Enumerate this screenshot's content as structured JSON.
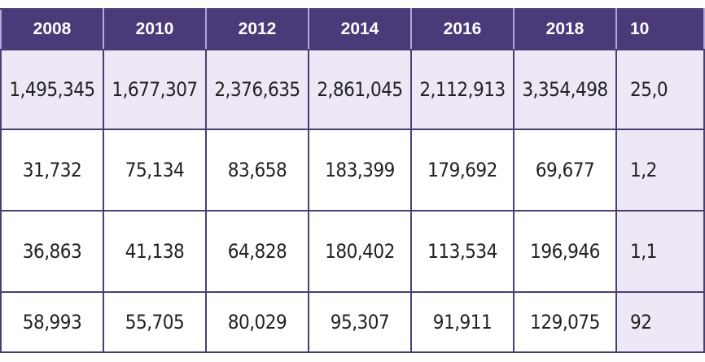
{
  "table": {
    "headers": [
      "2008",
      "2010",
      "2012",
      "2014",
      "2016",
      "2018",
      "10"
    ],
    "rows": [
      [
        "1,495,345",
        "1,677,307",
        "2,376,635",
        "2,861,045",
        "2,112,913",
        "3,354,498",
        "25,0"
      ],
      [
        "31,732",
        "75,134",
        "83,658",
        "183,399",
        "179,692",
        "69,677",
        "1,2"
      ],
      [
        "36,863",
        "41,138",
        "64,828",
        "180,402",
        "113,534",
        "196,946",
        "1,1"
      ],
      [
        "58,993",
        "55,705",
        "80,029",
        "95,307",
        "91,911",
        "129,075",
        "92"
      ]
    ]
  },
  "colors": {
    "header_bg": "#4a3a7a",
    "highlight_bg": "#ede7f6",
    "border": "#4a3f73"
  }
}
